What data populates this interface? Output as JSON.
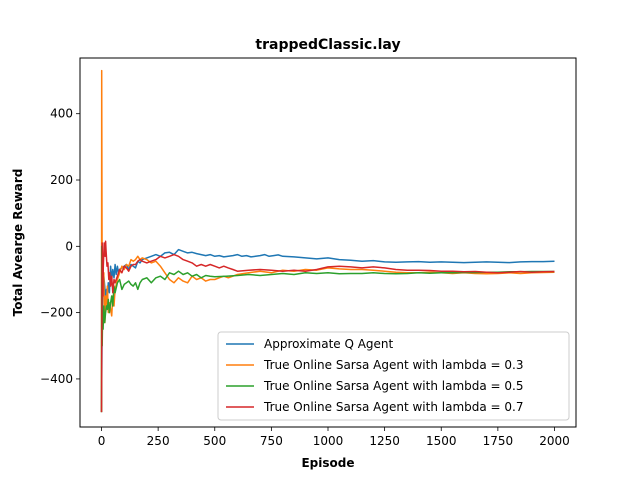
{
  "chart_data": {
    "type": "line",
    "title": "trappedClassic.lay",
    "xlabel": "Episode",
    "ylabel": "Total Avearge Reward",
    "xlim": [
      -95,
      2095
    ],
    "ylim": [
      -545,
      568
    ],
    "xticks": [
      0,
      250,
      500,
      750,
      1000,
      1250,
      1500,
      1750,
      2000
    ],
    "yticks": [
      -400,
      -200,
      0,
      200,
      400
    ],
    "tick_labels_x": [
      "0",
      "250",
      "500",
      "750",
      "1000",
      "1250",
      "1500",
      "1750",
      "2000"
    ],
    "tick_labels_y": [
      "−400",
      "−200",
      "0",
      "200",
      "400"
    ],
    "grid": false,
    "legend_position": "lower-right",
    "series": [
      {
        "name": "Approximate Q Agent",
        "color": "#1f77b4",
        "x": [
          0,
          2,
          4,
          6,
          8,
          10,
          14,
          18,
          22,
          26,
          30,
          35,
          40,
          45,
          50,
          55,
          60,
          65,
          70,
          75,
          80,
          90,
          100,
          110,
          120,
          130,
          140,
          150,
          160,
          170,
          180,
          200,
          220,
          240,
          260,
          280,
          300,
          320,
          340,
          360,
          380,
          400,
          420,
          440,
          460,
          480,
          500,
          520,
          540,
          560,
          580,
          600,
          620,
          640,
          660,
          680,
          700,
          720,
          740,
          760,
          780,
          800,
          850,
          900,
          950,
          1000,
          1050,
          1100,
          1150,
          1200,
          1250,
          1300,
          1350,
          1400,
          1450,
          1500,
          1550,
          1600,
          1650,
          1700,
          1750,
          1800,
          1850,
          1900,
          1950,
          2000
        ],
        "y": [
          -500,
          -300,
          -180,
          -120,
          -150,
          -90,
          -120,
          -160,
          -130,
          -150,
          -110,
          -140,
          -60,
          -100,
          -70,
          -95,
          -55,
          -85,
          -60,
          -80,
          -70,
          -65,
          -60,
          -55,
          -70,
          -55,
          -60,
          -65,
          -45,
          -50,
          -40,
          -35,
          -30,
          -25,
          -30,
          -20,
          -18,
          -25,
          -10,
          -15,
          -20,
          -18,
          -22,
          -25,
          -28,
          -25,
          -30,
          -28,
          -32,
          -30,
          -28,
          -25,
          -30,
          -28,
          -32,
          -30,
          -28,
          -25,
          -30,
          -28,
          -26,
          -30,
          -32,
          -35,
          -38,
          -35,
          -40,
          -42,
          -45,
          -43,
          -47,
          -48,
          -47,
          -46,
          -48,
          -47,
          -48,
          -49,
          -48,
          -47,
          -48,
          -49,
          -47,
          -46,
          -46,
          -45
        ]
      },
      {
        "name": "True Online Sarsa Agent with lambda = 0.3",
        "color": "#ff7f0e",
        "x": [
          0,
          1,
          2,
          3,
          4,
          5,
          6,
          8,
          10,
          12,
          15,
          18,
          22,
          26,
          30,
          35,
          40,
          45,
          50,
          55,
          60,
          70,
          80,
          90,
          100,
          110,
          120,
          130,
          140,
          150,
          160,
          170,
          180,
          200,
          220,
          240,
          260,
          280,
          300,
          320,
          340,
          360,
          380,
          400,
          420,
          440,
          460,
          480,
          500,
          520,
          540,
          560,
          580,
          600,
          650,
          700,
          750,
          800,
          850,
          900,
          950,
          1000,
          1050,
          1100,
          1150,
          1200,
          1250,
          1300,
          1350,
          1400,
          1450,
          1500,
          1550,
          1600,
          1650,
          1700,
          1750,
          1800,
          1850,
          1900,
          1950,
          2000
        ],
        "y": [
          -500,
          530,
          100,
          -150,
          -50,
          -100,
          -60,
          -150,
          -80,
          -200,
          -230,
          -150,
          -180,
          -120,
          -200,
          -170,
          -190,
          -210,
          -150,
          -180,
          -130,
          -100,
          -80,
          -60,
          -70,
          -55,
          -60,
          -40,
          -45,
          -40,
          -30,
          -40,
          -35,
          -40,
          -50,
          -45,
          -60,
          -80,
          -100,
          -110,
          -95,
          -105,
          -110,
          -90,
          -100,
          -95,
          -105,
          -100,
          -100,
          -95,
          -90,
          -95,
          -90,
          -85,
          -80,
          -75,
          -80,
          -72,
          -75,
          -70,
          -72,
          -65,
          -68,
          -70,
          -70,
          -72,
          -75,
          -78,
          -80,
          -80,
          -78,
          -80,
          -82,
          -80,
          -82,
          -83,
          -82,
          -80,
          -82,
          -80,
          -79,
          -78
        ]
      },
      {
        "name": "True Online Sarsa Agent with lambda = 0.5",
        "color": "#2ca02c",
        "x": [
          0,
          1,
          2,
          3,
          5,
          7,
          10,
          14,
          18,
          22,
          26,
          30,
          35,
          40,
          45,
          50,
          55,
          60,
          70,
          80,
          90,
          100,
          110,
          120,
          130,
          140,
          150,
          160,
          170,
          180,
          200,
          220,
          240,
          260,
          280,
          300,
          320,
          340,
          360,
          380,
          400,
          420,
          440,
          460,
          480,
          500,
          550,
          600,
          650,
          700,
          750,
          800,
          850,
          900,
          950,
          1000,
          1050,
          1100,
          1150,
          1200,
          1250,
          1300,
          1350,
          1400,
          1450,
          1500,
          1550,
          1600,
          1650,
          1700,
          1750,
          1800,
          1850,
          1900,
          1950,
          2000
        ],
        "y": [
          -500,
          0,
          -150,
          -300,
          -200,
          -250,
          -180,
          -230,
          -200,
          -180,
          -190,
          -160,
          -200,
          -170,
          -150,
          -180,
          -120,
          -140,
          -110,
          -100,
          -130,
          -115,
          -110,
          -105,
          -115,
          -120,
          -110,
          -130,
          -110,
          -100,
          -95,
          -110,
          -95,
          -90,
          -100,
          -80,
          -85,
          -75,
          -85,
          -80,
          -90,
          -85,
          -95,
          -88,
          -90,
          -92,
          -90,
          -88,
          -85,
          -88,
          -85,
          -82,
          -85,
          -80,
          -82,
          -80,
          -83,
          -82,
          -82,
          -80,
          -82,
          -83,
          -82,
          -80,
          -81,
          -80,
          -80,
          -79,
          -79,
          -78,
          -78,
          -77,
          -77,
          -76,
          -76,
          -76
        ]
      },
      {
        "name": "True Online Sarsa Agent with lambda = 0.7",
        "color": "#d62728",
        "x": [
          0,
          1,
          2,
          3,
          4,
          5,
          6,
          8,
          10,
          12,
          14,
          16,
          18,
          20,
          24,
          28,
          32,
          36,
          40,
          45,
          50,
          55,
          60,
          70,
          80,
          90,
          100,
          110,
          120,
          130,
          140,
          150,
          160,
          170,
          180,
          200,
          220,
          240,
          260,
          280,
          300,
          320,
          340,
          360,
          380,
          400,
          420,
          440,
          460,
          480,
          500,
          520,
          540,
          560,
          580,
          600,
          650,
          700,
          750,
          800,
          850,
          900,
          950,
          1000,
          1050,
          1100,
          1150,
          1200,
          1250,
          1300,
          1350,
          1400,
          1450,
          1500,
          1550,
          1600,
          1650,
          1700,
          1750,
          1800,
          1850,
          1900,
          1950,
          2000
        ],
        "y": [
          -500,
          -350,
          -150,
          10,
          -100,
          -50,
          -150,
          -60,
          -20,
          10,
          5,
          -30,
          15,
          -10,
          -60,
          -50,
          -100,
          -80,
          -120,
          -90,
          -140,
          -100,
          -110,
          -90,
          -70,
          -80,
          -60,
          -65,
          -75,
          -60,
          -55,
          -55,
          -45,
          -40,
          -45,
          -50,
          -45,
          -40,
          -30,
          -35,
          -30,
          -25,
          -30,
          -40,
          -45,
          -50,
          -60,
          -55,
          -60,
          -55,
          -60,
          -65,
          -60,
          -65,
          -70,
          -75,
          -72,
          -70,
          -72,
          -75,
          -72,
          -75,
          -70,
          -62,
          -60,
          -62,
          -65,
          -62,
          -65,
          -70,
          -72,
          -72,
          -73,
          -75,
          -75,
          -77,
          -76,
          -78,
          -80,
          -78,
          -76,
          -78,
          -77,
          -76
        ]
      }
    ]
  }
}
